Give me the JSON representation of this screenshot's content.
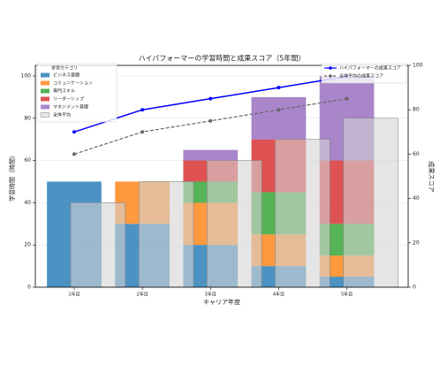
{
  "chart_data": {
    "type": "stacked_bar_line",
    "title": "ハイパフォーマーの学習時間と成果スコア（5年間）",
    "x_label": "キャリア年度",
    "y_label": "学習時間（時間）",
    "y2_label": "成果スコア",
    "categories": [
      "1年目",
      "2年目",
      "3年目",
      "4年目",
      "5年目"
    ],
    "ylim": [
      0,
      105
    ],
    "yticks": [
      0,
      20,
      40,
      60,
      80,
      100
    ],
    "y2lim": [
      0,
      100
    ],
    "y2ticks": [
      0,
      20,
      40,
      60,
      80,
      100
    ],
    "grid": true,
    "legend_title": "学習カテゴリ",
    "legend": "upper left",
    "legend2": "upper right",
    "series": [
      {
        "name": "ビジネス基礎",
        "kind": "stack",
        "color": "#1f77b4",
        "values": [
          50,
          30,
          20,
          10,
          5
        ]
      },
      {
        "name": "コミュニケーション",
        "kind": "stack",
        "color": "#ff7f0e",
        "values": [
          0,
          20,
          20,
          15,
          10
        ]
      },
      {
        "name": "専門スキル",
        "kind": "stack",
        "color": "#2ca02c",
        "values": [
          0,
          0,
          10,
          20,
          15
        ]
      },
      {
        "name": "リーダーシップ",
        "kind": "stack",
        "color": "#d62728",
        "values": [
          0,
          0,
          10,
          25,
          30
        ]
      },
      {
        "name": "マネジメント基礎",
        "kind": "stack",
        "color": "#9467bd",
        "values": [
          0,
          0,
          5,
          20,
          40
        ]
      },
      {
        "name": "全体平均",
        "kind": "bar",
        "color": "#d3d3d3",
        "values": [
          40,
          50,
          60,
          70,
          80
        ]
      },
      {
        "name": "ハイパフォーマーの成果スコア",
        "kind": "line",
        "axis": "y2",
        "style": "solid",
        "color": "#0000ff",
        "values": [
          70,
          80,
          85,
          90,
          95
        ]
      },
      {
        "name": "全体平均の成果スコア",
        "kind": "line",
        "axis": "y2",
        "style": "dashed",
        "color": "#666666",
        "values": [
          60,
          70,
          75,
          80,
          85
        ]
      }
    ]
  }
}
